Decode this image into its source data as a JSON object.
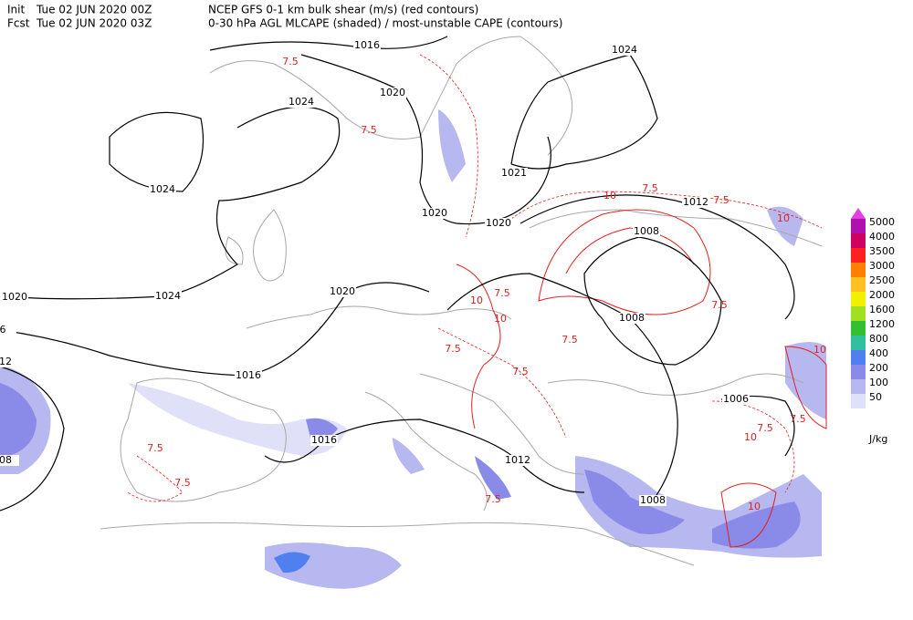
{
  "header": {
    "line1": [
      "Init",
      "Tue 02 JUN 2020 00Z",
      "NCEP GFS 0-1 km bulk shear (m/s) (red contours)"
    ],
    "line2": [
      "Fcst",
      "Tue 02 JUN 2020 03Z",
      "0-30 hPa AGL MLCAPE (shaded) / most-unstable CAPE (contours)"
    ]
  },
  "colorbar": {
    "levels": [
      5000,
      4000,
      3500,
      3000,
      2500,
      2000,
      1600,
      1200,
      800,
      400,
      200,
      100,
      50
    ],
    "colors": [
      "#e040e0",
      "#b010b0",
      "#d00060",
      "#ff2020",
      "#ff8000",
      "#ffc020",
      "#f0f000",
      "#a0e020",
      "#30c030",
      "#30c0a0",
      "#5080f0",
      "#8a8ae8",
      "#b8b8f0",
      "#e0e0f8"
    ],
    "unit": "J/kg"
  },
  "isobar_labels": [
    "1016",
    "1020",
    "1024",
    "1024",
    "1024",
    "1021",
    "1020",
    "1020",
    "1012",
    "1008",
    "1024",
    "1020",
    "1020",
    "1016",
    "1008",
    "1016",
    "1012",
    "1006",
    "1008",
    "12",
    "08",
    "6"
  ],
  "shear_labels": [
    "7.5",
    "7.5",
    "10",
    "7.5",
    "7.5",
    "10",
    "10",
    "7.5",
    "10",
    "7.5",
    "7.5",
    "7.5",
    "10",
    "7.5",
    "7.5",
    "10",
    "7.5",
    "7.5",
    "7.5",
    "10",
    "7.5"
  ]
}
